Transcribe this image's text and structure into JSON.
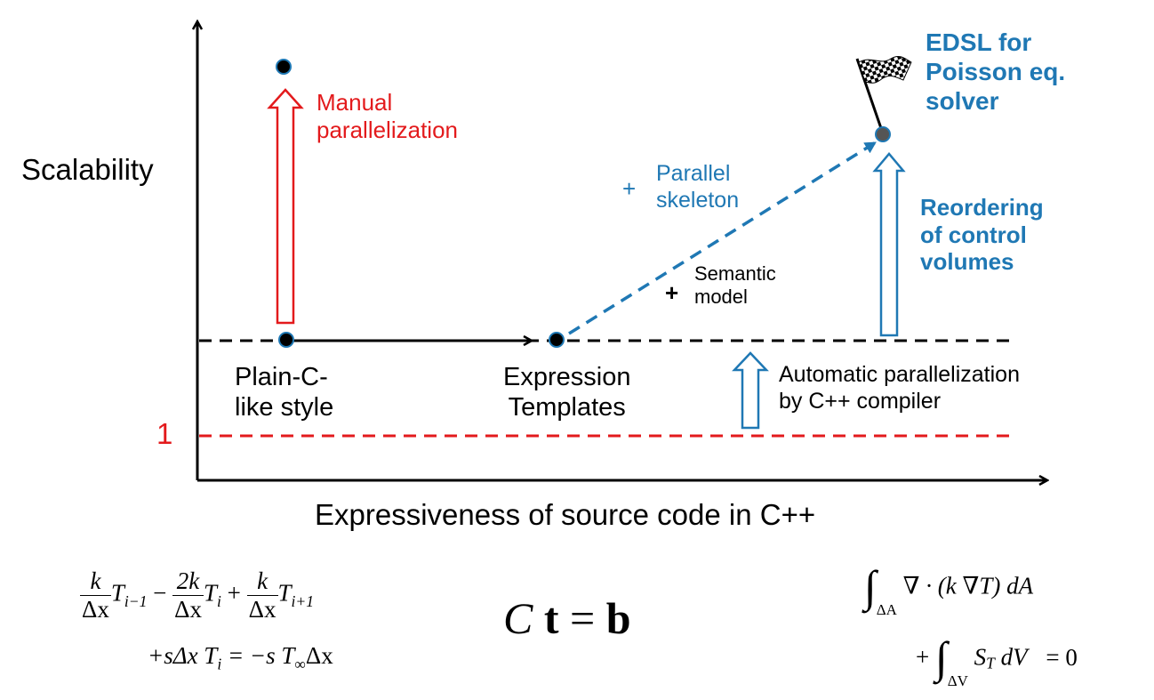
{
  "y_axis_label": "Scalability",
  "x_axis_label": "Expressiveness of source code in C++",
  "baseline_label": "1",
  "manual": {
    "line1": "Manual",
    "line2": "parallelization"
  },
  "plain_c": {
    "line1": "Plain-C-",
    "line2": "like style"
  },
  "expression_templates": {
    "line1": "Expression",
    "line2": "Templates"
  },
  "parallel_skeleton": {
    "plus": "+",
    "line1": "Parallel",
    "line2": "skeleton"
  },
  "semantic_model": {
    "plus": "+",
    "line1": "Semantic",
    "line2": "model"
  },
  "edsl": {
    "line1": "EDSL for",
    "line2": "Poisson eq.",
    "line3": "solver"
  },
  "reordering": {
    "line1": "Reordering",
    "line2": "of control",
    "line3": "volumes"
  },
  "automatic": {
    "line1": "Automatic parallelization",
    "line2": "by C++ compiler"
  },
  "equations": {
    "discrete": {
      "k": "k",
      "dx": "Δx",
      "two_k": "2k",
      "t_im1": "T",
      "sub_im1": "i−1",
      "minus": "−",
      "t_i": "T",
      "sub_i": "i",
      "plus": "+",
      "t_ip1": "T",
      "sub_ip1": "i+1",
      "line2": "+sΔx T",
      "line2_sub": "i",
      "line2_rest": " = −s T",
      "inf": "∞",
      "line2_end": "Δx"
    },
    "matrix": {
      "C": "C",
      "t": "t",
      "eq": " = ",
      "b": "b"
    },
    "integral": {
      "int": "∫",
      "dA_lim": "ΔA",
      "term1": "∇ · (k ∇T) dA",
      "plus": "+",
      "dV_lim": "ΔV",
      "S": "S",
      "sub_T": "T",
      "dV": " dV",
      "eq0": "= 0"
    }
  },
  "colors": {
    "red": "#e31a1c",
    "blue": "#1f78b4",
    "black": "#000000"
  }
}
